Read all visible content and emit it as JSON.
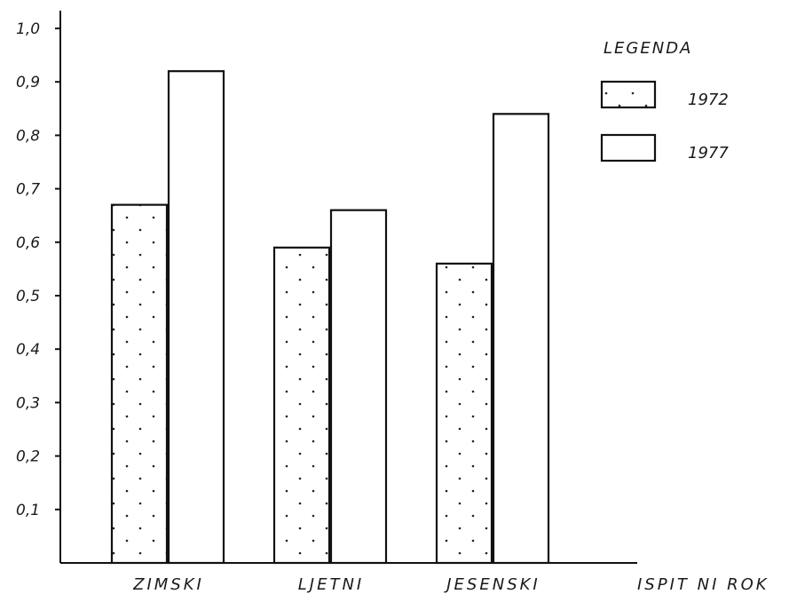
{
  "chart_data": {
    "type": "bar",
    "categories": [
      "ZIMSKI",
      "LJETNI",
      "JESENSKI"
    ],
    "series": [
      {
        "name": "1972",
        "values": [
          0.67,
          0.59,
          0.56
        ]
      },
      {
        "name": "1977",
        "values": [
          0.92,
          0.66,
          0.84
        ]
      }
    ],
    "yticks": [
      "0,1",
      "0,2",
      "0,3",
      "0,4",
      "0,5",
      "0,6",
      "0,7",
      "0,8",
      "0,9",
      "1,0"
    ],
    "ylim": [
      0,
      1.0
    ],
    "xlabel": "ISPIT NI ROK",
    "ylabel": "",
    "legend": {
      "title": "LEGENDA",
      "position": "top-right"
    },
    "grid": false
  }
}
